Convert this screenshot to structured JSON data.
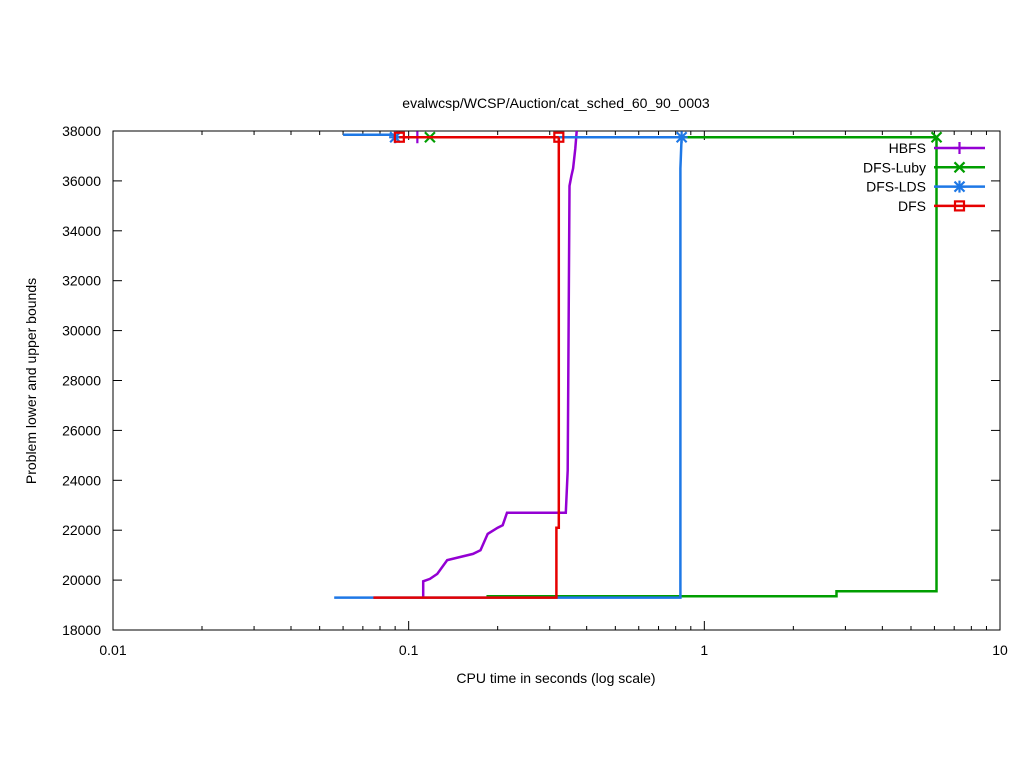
{
  "chart_data": {
    "type": "line",
    "title": "evalwcsp/WCSP/Auction/cat_sched_60_90_0003",
    "xlabel": "CPU time in seconds (log scale)",
    "ylabel": "Problem lower and upper bounds",
    "xscale": "log",
    "xlim": [
      0.01,
      10
    ],
    "ylim": [
      18000,
      38000
    ],
    "x_ticks": [
      0.01,
      0.1,
      1,
      10
    ],
    "x_tick_labels": [
      "0.01",
      "0.1",
      "1",
      "10"
    ],
    "y_ticks": [
      18000,
      20000,
      22000,
      24000,
      26000,
      28000,
      30000,
      32000,
      34000,
      36000,
      38000
    ],
    "y_tick_labels": [
      "18000",
      "20000",
      "22000",
      "24000",
      "26000",
      "28000",
      "30000",
      "32000",
      "34000",
      "36000",
      "38000"
    ],
    "grid": false,
    "legend_position": "top-right",
    "series": [
      {
        "name": "HBFS",
        "color": "#9400d3",
        "marker": "plus",
        "lower": [
          [
            0.112,
            19300
          ],
          [
            0.112,
            19950
          ],
          [
            0.118,
            20050
          ],
          [
            0.125,
            20250
          ],
          [
            0.135,
            20800
          ],
          [
            0.165,
            21050
          ],
          [
            0.175,
            21200
          ],
          [
            0.185,
            21850
          ],
          [
            0.2,
            22100
          ],
          [
            0.208,
            22200
          ],
          [
            0.215,
            22700
          ],
          [
            0.34,
            22700
          ],
          [
            0.345,
            24400
          ],
          [
            0.35,
            35800
          ],
          [
            0.355,
            36200
          ],
          [
            0.36,
            36500
          ],
          [
            0.366,
            37300
          ],
          [
            0.37,
            38000
          ]
        ],
        "upper": [
          [
            0.103,
            37750
          ],
          [
            0.37,
            37750
          ]
        ],
        "markers": [
          [
            0.107,
            37750
          ]
        ]
      },
      {
        "name": "DFS-Luby",
        "color": "#009e00",
        "marker": "cross",
        "lower": [
          [
            0.185,
            19300
          ],
          [
            0.185,
            19350
          ],
          [
            2.8,
            19350
          ],
          [
            2.8,
            19550
          ],
          [
            6.1,
            19550
          ],
          [
            6.1,
            37750
          ]
        ],
        "upper": [
          [
            0.1,
            37750
          ],
          [
            6.1,
            37750
          ]
        ],
        "markers": [
          [
            0.118,
            37750
          ],
          [
            6.1,
            37750
          ]
        ]
      },
      {
        "name": "DFS-LDS",
        "color": "#1e78e6",
        "marker": "star",
        "lower": [
          [
            0.056,
            19300
          ],
          [
            0.83,
            19300
          ],
          [
            0.83,
            36500
          ],
          [
            0.838,
            37750
          ]
        ],
        "upper": [
          [
            0.06,
            37850
          ],
          [
            0.09,
            37850
          ],
          [
            0.09,
            37750
          ],
          [
            0.838,
            37750
          ]
        ],
        "markers": [
          [
            0.09,
            37750
          ],
          [
            0.838,
            37750
          ]
        ]
      },
      {
        "name": "DFS",
        "color": "#e60000",
        "marker": "square",
        "lower": [
          [
            0.076,
            19300
          ],
          [
            0.316,
            19300
          ],
          [
            0.316,
            22100
          ],
          [
            0.322,
            22100
          ],
          [
            0.322,
            37750
          ]
        ],
        "upper": [
          [
            0.093,
            37750
          ],
          [
            0.322,
            37750
          ]
        ],
        "markers": [
          [
            0.093,
            37750
          ],
          [
            0.322,
            37750
          ]
        ]
      }
    ]
  }
}
